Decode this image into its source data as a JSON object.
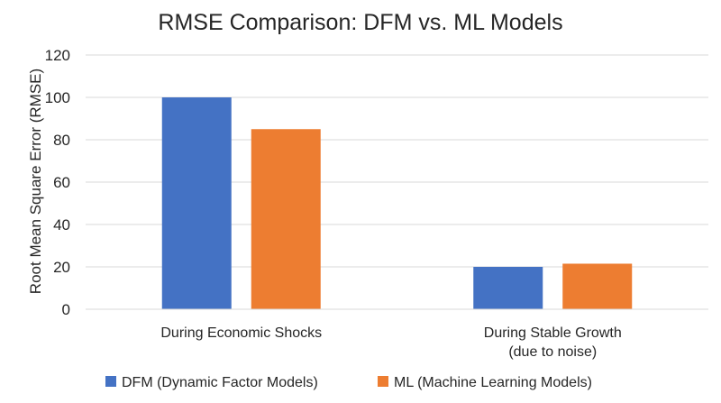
{
  "chart_data": {
    "type": "bar",
    "title": "RMSE Comparison: DFM vs. ML Models",
    "xlabel": "",
    "ylabel": "Root Mean Square Error (RMSE)",
    "ylim": [
      0,
      120
    ],
    "yticks": [
      "0",
      "20",
      "40",
      "60",
      "80",
      "100",
      "120"
    ],
    "grid": true,
    "legend_position": "bottom",
    "categories": [
      [
        "During Economic Shocks"
      ],
      [
        "During Stable Growth",
        "(due to noise)"
      ]
    ],
    "series": [
      {
        "name": "DFM (Dynamic Factor Models)",
        "color": "#4472c4",
        "values": [
          100,
          20
        ]
      },
      {
        "name": "ML (Machine Learning Models)",
        "color": "#ed7d31",
        "values": [
          85,
          21.5
        ]
      }
    ]
  }
}
